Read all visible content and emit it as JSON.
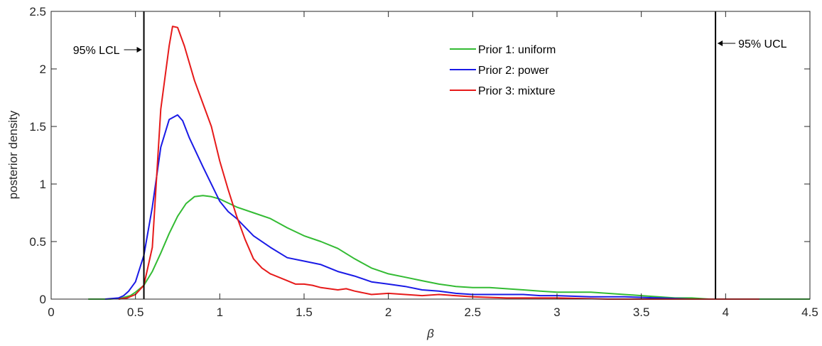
{
  "chart_data": {
    "type": "line",
    "xlabel": "β",
    "ylabel": "posterior density",
    "xlim": [
      0,
      4.5
    ],
    "ylim": [
      0,
      2.5
    ],
    "xticks": [
      "0",
      "0.5",
      "1",
      "1.5",
      "2",
      "2.5",
      "3",
      "3.5",
      "4",
      "4.5"
    ],
    "yticks": [
      "0",
      "0.5",
      "1",
      "1.5",
      "2",
      "2.5"
    ],
    "grid": false,
    "legend_position": "top-right",
    "series": [
      {
        "name": "Prior 1: uniform",
        "color": "#33bb33",
        "x": [
          0.22,
          0.35,
          0.42,
          0.47,
          0.5,
          0.55,
          0.6,
          0.65,
          0.7,
          0.75,
          0.8,
          0.85,
          0.9,
          0.95,
          1.0,
          1.1,
          1.2,
          1.3,
          1.4,
          1.5,
          1.6,
          1.7,
          1.8,
          1.9,
          2.0,
          2.1,
          2.2,
          2.3,
          2.4,
          2.5,
          2.6,
          2.7,
          2.8,
          2.9,
          3.0,
          3.1,
          3.2,
          3.3,
          3.4,
          3.5,
          3.6,
          3.7,
          3.8,
          3.9,
          4.0,
          4.2,
          4.5
        ],
        "y": [
          0.0,
          0.0,
          0.01,
          0.03,
          0.06,
          0.12,
          0.24,
          0.4,
          0.57,
          0.72,
          0.83,
          0.89,
          0.9,
          0.89,
          0.87,
          0.8,
          0.75,
          0.7,
          0.62,
          0.55,
          0.5,
          0.44,
          0.35,
          0.27,
          0.22,
          0.19,
          0.16,
          0.13,
          0.11,
          0.1,
          0.1,
          0.09,
          0.08,
          0.07,
          0.06,
          0.06,
          0.06,
          0.05,
          0.04,
          0.03,
          0.02,
          0.01,
          0.01,
          0.0,
          0.0,
          0.0,
          0.0
        ]
      },
      {
        "name": "Prior 2: power",
        "color": "#1a1ae6",
        "x": [
          0.32,
          0.4,
          0.43,
          0.46,
          0.5,
          0.55,
          0.6,
          0.65,
          0.7,
          0.75,
          0.78,
          0.82,
          0.9,
          1.0,
          1.05,
          1.1,
          1.2,
          1.3,
          1.4,
          1.5,
          1.6,
          1.7,
          1.8,
          1.9,
          2.0,
          2.1,
          2.2,
          2.3,
          2.4,
          2.5,
          2.6,
          2.7,
          2.8,
          2.9,
          3.0,
          3.2,
          3.4,
          3.6,
          3.8,
          4.0,
          4.2
        ],
        "y": [
          0.0,
          0.01,
          0.03,
          0.07,
          0.15,
          0.38,
          0.8,
          1.32,
          1.56,
          1.6,
          1.55,
          1.4,
          1.15,
          0.85,
          0.76,
          0.7,
          0.55,
          0.45,
          0.36,
          0.33,
          0.3,
          0.24,
          0.2,
          0.15,
          0.13,
          0.11,
          0.08,
          0.07,
          0.05,
          0.04,
          0.04,
          0.04,
          0.04,
          0.03,
          0.03,
          0.02,
          0.02,
          0.01,
          0.0,
          0.0,
          0.0
        ]
      },
      {
        "name": "Prior 3: mixture",
        "color": "#e61a1a",
        "x": [
          0.4,
          0.45,
          0.5,
          0.55,
          0.6,
          0.65,
          0.7,
          0.72,
          0.75,
          0.79,
          0.85,
          0.9,
          0.95,
          1.0,
          1.05,
          1.1,
          1.15,
          1.2,
          1.25,
          1.3,
          1.4,
          1.45,
          1.5,
          1.55,
          1.6,
          1.7,
          1.75,
          1.8,
          1.9,
          2.0,
          2.1,
          2.2,
          2.3,
          2.5,
          2.7,
          3.0,
          3.3,
          3.6,
          3.9,
          4.2
        ],
        "y": [
          0.0,
          0.01,
          0.04,
          0.12,
          0.45,
          1.65,
          2.2,
          2.37,
          2.36,
          2.2,
          1.9,
          1.7,
          1.5,
          1.2,
          0.95,
          0.72,
          0.52,
          0.35,
          0.27,
          0.22,
          0.16,
          0.13,
          0.13,
          0.12,
          0.1,
          0.08,
          0.09,
          0.07,
          0.04,
          0.05,
          0.04,
          0.03,
          0.04,
          0.02,
          0.01,
          0.01,
          0.0,
          0.0,
          0.0,
          0.0
        ]
      }
    ],
    "annotations": [
      {
        "text": "95% LCL",
        "x": 0.55,
        "arrow": "right"
      },
      {
        "text": "95% UCL",
        "x": 3.94,
        "arrow": "left"
      }
    ]
  }
}
